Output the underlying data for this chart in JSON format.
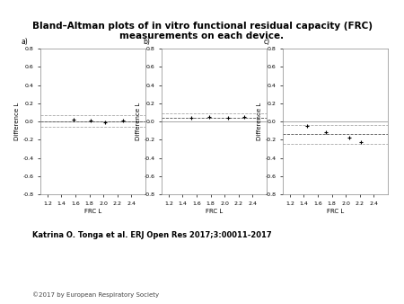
{
  "title": "Bland–Altman plots of in vitro functional residual capacity (FRC) measurements on each device.",
  "title_fontsize": 7.5,
  "title_fontweight": "bold",
  "citation": "Katrina O. Tonga et al. ERJ Open Res 2017;3:00011-2017",
  "citation_fontsize": 6,
  "copyright": "©2017 by European Respiratory Society",
  "copyright_fontsize": 5,
  "subplot_labels": [
    "a)",
    "b)",
    "c)"
  ],
  "xlabel": "FRC L",
  "ylabel": "Difference L",
  "xlim": [
    1.1,
    2.6
  ],
  "xticks": [
    1.2,
    1.4,
    1.6,
    1.8,
    2.0,
    2.2,
    2.4
  ],
  "ylim": [
    -0.8,
    0.8
  ],
  "yticks": [
    -0.8,
    -0.6,
    -0.4,
    -0.2,
    0.0,
    0.2,
    0.4,
    0.6,
    0.8
  ],
  "panels": [
    {
      "label": "a)",
      "x_data": [
        1.58,
        1.82,
        2.02,
        2.28
      ],
      "y_data": [
        0.02,
        0.01,
        -0.01,
        0.01
      ],
      "mean_diff": 0.006,
      "loa_upper": 0.07,
      "loa_lower": -0.06
    },
    {
      "label": "b)",
      "x_data": [
        1.52,
        1.78,
        2.05,
        2.28
      ],
      "y_data": [
        0.04,
        0.05,
        0.04,
        0.05
      ],
      "mean_diff": 0.045,
      "loa_upper": 0.09,
      "loa_lower": 0.005
    },
    {
      "label": "c)",
      "x_data": [
        1.45,
        1.72,
        2.05,
        2.22
      ],
      "y_data": [
        -0.05,
        -0.12,
        -0.18,
        -0.22
      ],
      "mean_diff": -0.14,
      "loa_upper": -0.04,
      "loa_lower": -0.24
    }
  ],
  "mean_line_color": "#555555",
  "loa_line_color": "#aaaaaa",
  "point_color": "#000000",
  "zero_line_color": "#999999",
  "bg_color": "#ffffff",
  "tick_fontsize": 4.5,
  "label_fontsize": 5,
  "subplot_label_fontsize": 5.5
}
